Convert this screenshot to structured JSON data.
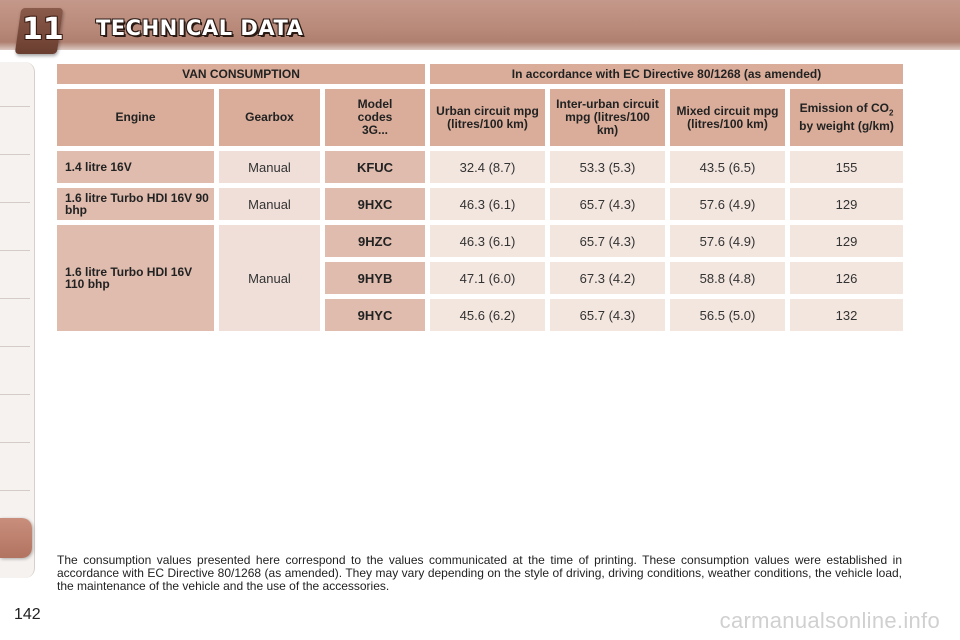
{
  "header": {
    "chapter_number": "11",
    "title": "TECHNICAL DATA"
  },
  "table": {
    "section_left": "VAN CONSUMPTION",
    "section_right": "In accordance with EC Directive 80/1268 (as amended)",
    "columns": {
      "engine": "Engine",
      "gearbox": "Gearbox",
      "model_codes": "Model codes 3G...",
      "urban": "Urban circuit mpg (litres/100 km)",
      "inter_urban": "Inter-urban circuit mpg (litres/100 km)",
      "mixed": "Mixed circuit mpg (litres/100 km)",
      "emission_pre": "Emission of CO",
      "emission_sub": "2",
      "emission_post": " by weight (g/km)"
    },
    "rows": [
      {
        "engine": "1.4 litre 16V",
        "gearbox": "Manual",
        "code": "KFUC",
        "urban": "32.4 (8.7)",
        "inter_urban": "53.3 (5.3)",
        "mixed": "43.5 (6.5)",
        "co2": "155"
      },
      {
        "engine": "1.6 litre Turbo HDI 16V 90 bhp",
        "gearbox": "Manual",
        "code": "9HXC",
        "urban": "46.3 (6.1)",
        "inter_urban": "65.7 (4.3)",
        "mixed": "57.6 (4.9)",
        "co2": "129"
      },
      {
        "engine": "1.6 litre Turbo HDI 16V 110 bhp",
        "gearbox": "Manual",
        "code": "9HZC",
        "urban": "46.3 (6.1)",
        "inter_urban": "65.7 (4.3)",
        "mixed": "57.6 (4.9)",
        "co2": "129"
      },
      {
        "engine": "",
        "gearbox": "",
        "code": "9HYB",
        "urban": "47.1 (6.0)",
        "inter_urban": "67.3 (4.2)",
        "mixed": "58.8 (4.8)",
        "co2": "126"
      },
      {
        "engine": "",
        "gearbox": "",
        "code": "9HYC",
        "urban": "45.6 (6.2)",
        "inter_urban": "65.7 (4.3)",
        "mixed": "56.5 (5.0)",
        "co2": "132"
      }
    ]
  },
  "footnote": "The consumption values presented here correspond to the values communicated at the time of printing. These consumption values were established in accordance with EC Directive 80/1268 (as amended). They may vary depending on the style of driving, driving conditions, weather conditions, the vehicle load, the maintenance of the vehicle and the use of the accessories.",
  "page_number": "142",
  "watermark": "carmanualsonline.info",
  "colors": {
    "header": "#b98a7a",
    "table_header": "#d9ad9a",
    "engine_cell": "#dfbcae",
    "value_cell": "#f3e6df"
  }
}
